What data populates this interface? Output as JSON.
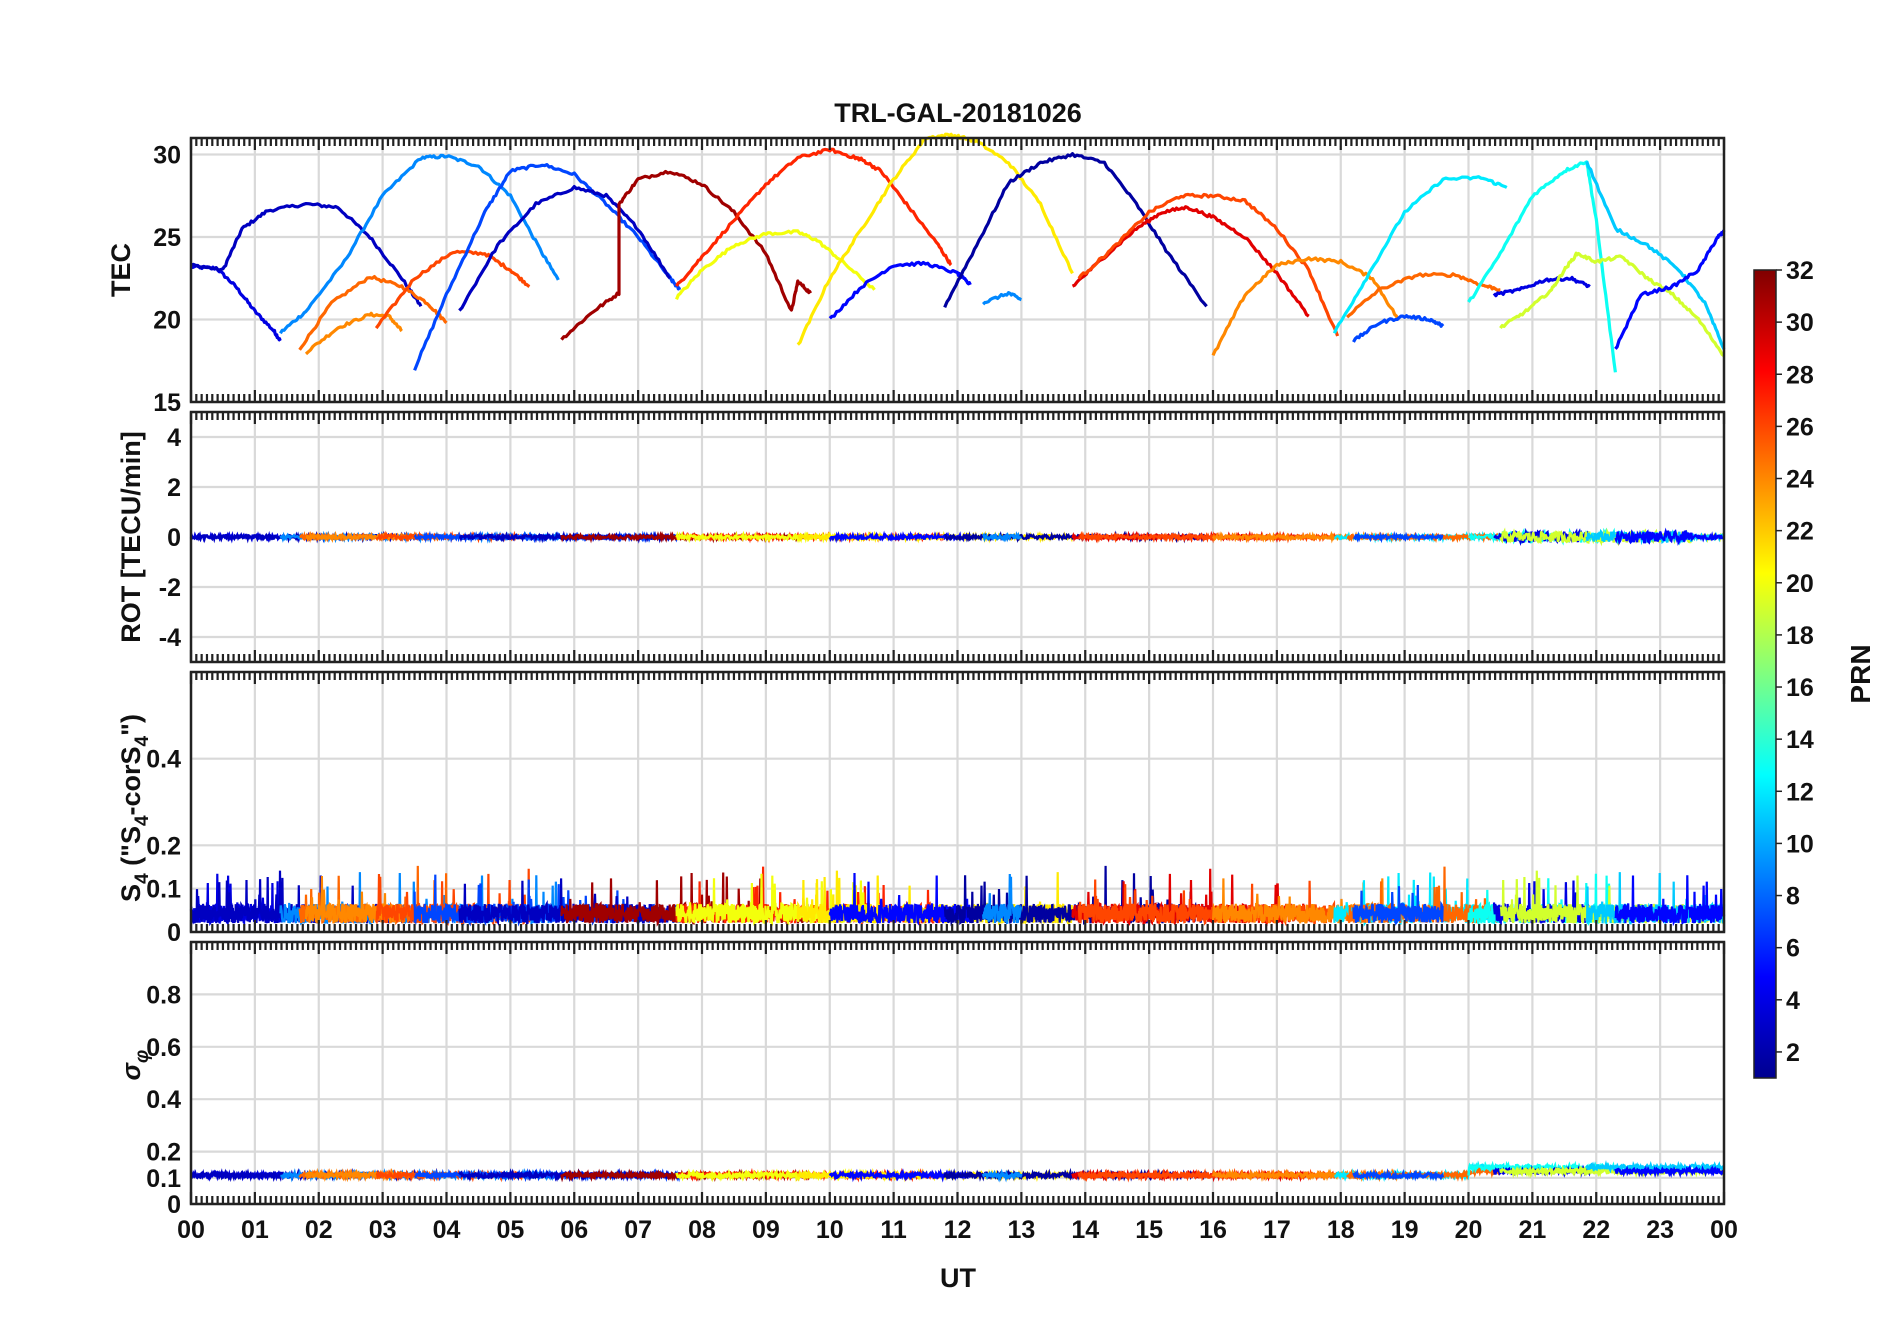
{
  "chart_data": [
    {
      "type": "line",
      "panel": "tec",
      "title": "TRL-GAL-20181026",
      "xlabel": "",
      "ylabel": "TEC",
      "xlim": [
        0,
        24
      ],
      "ylim": [
        15,
        31
      ],
      "yticks": [
        15,
        20,
        25,
        30
      ],
      "grid": true,
      "series": [
        {
          "name": "PRN 4",
          "prn": 4,
          "x": [
            0.0,
            0.4,
            0.7,
            1.0,
            1.3,
            1.4
          ],
          "y": [
            23.2,
            23.1,
            22.0,
            20.5,
            19.3,
            18.7
          ]
        },
        {
          "name": "PRN 3",
          "prn": 3,
          "x": [
            0.0,
            0.5,
            0.8,
            1.2,
            1.8,
            2.3,
            2.8,
            3.3,
            3.6
          ],
          "y": [
            23.3,
            23.0,
            25.5,
            26.6,
            27.0,
            26.8,
            25.0,
            22.5,
            20.8
          ]
        },
        {
          "name": "PRN 9",
          "prn": 9,
          "x": [
            1.4,
            1.8,
            2.4,
            3.0,
            3.6,
            4.0,
            4.5,
            5.0,
            5.5,
            5.75
          ],
          "y": [
            19.2,
            20.5,
            23.5,
            27.5,
            29.8,
            29.9,
            29.3,
            27.5,
            24.0,
            22.4
          ]
        },
        {
          "name": "PRN 25",
          "prn": 25,
          "x": [
            1.7,
            2.2,
            2.8,
            3.3,
            3.7,
            4.0
          ],
          "y": [
            18.2,
            21.0,
            22.6,
            22.0,
            21.0,
            19.8
          ]
        },
        {
          "name": "PRN 24",
          "prn": 24,
          "x": [
            1.8,
            2.3,
            2.8,
            3.1,
            3.3
          ],
          "y": [
            18.0,
            19.5,
            20.3,
            20.2,
            19.3
          ]
        },
        {
          "name": "PRN 26",
          "prn": 26,
          "x": [
            2.9,
            3.5,
            4.1,
            4.6,
            5.0,
            5.3
          ],
          "y": [
            19.5,
            22.5,
            24.1,
            24.0,
            23.0,
            22.0
          ]
        },
        {
          "name": "PRN 7",
          "prn": 7,
          "x": [
            3.5,
            4.0,
            4.6,
            5.0,
            5.5,
            6.0,
            6.5,
            7.0,
            7.5,
            7.65
          ],
          "y": [
            17.0,
            21.5,
            26.5,
            29.0,
            29.4,
            28.8,
            27.0,
            25.0,
            22.5,
            21.8
          ]
        },
        {
          "name": "PRN 3b",
          "prn": 3,
          "x": [
            4.2,
            4.8,
            5.4,
            6.0,
            6.5,
            7.0,
            7.5
          ],
          "y": [
            20.5,
            24.5,
            27.0,
            28.0,
            27.5,
            25.5,
            22.5
          ]
        },
        {
          "name": "PRN 31",
          "prn": 31,
          "x": [
            5.8,
            6.3,
            6.7,
            6.7,
            7.0,
            7.5,
            8.0,
            8.5,
            9.0,
            9.4,
            9.5,
            9.7
          ],
          "y": [
            18.8,
            20.5,
            21.6,
            27.0,
            28.5,
            29.0,
            28.2,
            26.5,
            24.0,
            20.5,
            22.3,
            21.6
          ]
        },
        {
          "name": "PRN 27",
          "prn": 27,
          "x": [
            7.6,
            8.0,
            8.5,
            9.0,
            9.5,
            10.0,
            10.4,
            10.5,
            10.8,
            11.2,
            11.7,
            11.9
          ],
          "y": [
            22.0,
            23.8,
            26.0,
            28.2,
            29.8,
            30.3,
            29.8,
            29.7,
            29.0,
            27.0,
            24.5,
            23.3
          ]
        },
        {
          "name": "PRN 20",
          "prn": 20,
          "x": [
            7.6,
            8.0,
            8.5,
            9.0,
            9.5,
            9.8,
            10.2,
            10.7
          ],
          "y": [
            21.3,
            23.0,
            24.5,
            25.2,
            25.3,
            24.8,
            23.5,
            21.8
          ]
        },
        {
          "name": "PRN 21",
          "prn": 21,
          "x": [
            9.5,
            10.0,
            10.5,
            11.0,
            11.5,
            11.9,
            12.3,
            12.8,
            13.3,
            13.8
          ],
          "y": [
            18.4,
            22.5,
            25.5,
            28.5,
            31.0,
            31.2,
            30.8,
            29.5,
            27.0,
            22.8
          ]
        },
        {
          "name": "PRN 5",
          "prn": 5,
          "x": [
            10.0,
            10.5,
            11.0,
            11.5,
            12.0,
            12.2
          ],
          "y": [
            20.0,
            22.0,
            23.3,
            23.4,
            22.8,
            22.1
          ]
        },
        {
          "name": "PRN 2",
          "prn": 2,
          "x": [
            11.8,
            12.3,
            12.8,
            13.3,
            13.8,
            14.3,
            14.8,
            15.3,
            15.9
          ],
          "y": [
            20.8,
            24.5,
            28.3,
            29.5,
            30.0,
            29.5,
            27.0,
            24.0,
            20.8
          ]
        },
        {
          "name": "PRN 9b",
          "prn": 9,
          "x": [
            12.4,
            12.8,
            13.0
          ],
          "y": [
            21.0,
            21.6,
            21.2
          ]
        },
        {
          "name": "PRN 29",
          "prn": 29,
          "x": [
            13.8,
            14.3,
            14.8,
            15.2,
            15.6,
            16.0,
            16.5,
            17.0,
            17.5
          ],
          "y": [
            22.0,
            23.8,
            25.5,
            26.5,
            26.8,
            26.2,
            25.0,
            22.8,
            20.2
          ]
        },
        {
          "name": "PRN 26b",
          "prn": 26,
          "x": [
            13.9,
            14.4,
            15.0,
            15.5,
            16.0,
            16.5,
            17.0,
            17.5,
            17.95
          ],
          "y": [
            22.5,
            24.2,
            26.5,
            27.5,
            27.5,
            27.2,
            25.5,
            23.0,
            19.0
          ]
        },
        {
          "name": "PRN 24b",
          "prn": 24,
          "x": [
            16.0,
            16.5,
            17.0,
            17.5,
            18.0,
            18.5,
            18.9
          ],
          "y": [
            17.8,
            21.5,
            23.3,
            23.7,
            23.5,
            22.5,
            20.0
          ]
        },
        {
          "name": "PRN 12",
          "prn": 12,
          "x": [
            17.9,
            18.4,
            19.0,
            19.6,
            20.2,
            20.6
          ],
          "y": [
            19.2,
            22.5,
            26.5,
            28.5,
            28.6,
            28.0
          ]
        },
        {
          "name": "PRN 25b",
          "prn": 25,
          "x": [
            18.1,
            18.6,
            19.2,
            19.8,
            20.2,
            20.5
          ],
          "y": [
            20.2,
            21.8,
            22.7,
            22.7,
            22.1,
            21.8
          ]
        },
        {
          "name": "PRN 7b",
          "prn": 7,
          "x": [
            18.2,
            18.6,
            19.0,
            19.4,
            19.6
          ],
          "y": [
            18.7,
            19.8,
            20.2,
            20.0,
            19.6
          ]
        },
        {
          "name": "PRN 13",
          "prn": 13,
          "x": [
            20.0,
            20.5,
            21.0,
            21.5,
            21.85,
            22.0,
            22.3
          ],
          "y": [
            21.0,
            24.0,
            27.5,
            29.0,
            29.6,
            26.0,
            16.8
          ]
        },
        {
          "name": "PRN 4b",
          "prn": 4,
          "x": [
            20.4,
            20.8,
            21.2,
            21.6,
            21.9
          ],
          "y": [
            21.5,
            21.8,
            22.4,
            22.5,
            22.0
          ]
        },
        {
          "name": "PRN 19",
          "prn": 19,
          "x": [
            20.5,
            20.9,
            21.3,
            21.5,
            21.7,
            22.0,
            22.4,
            22.8,
            23.2,
            23.6,
            24.0
          ],
          "y": [
            19.5,
            20.5,
            21.8,
            23.0,
            24.0,
            23.5,
            23.8,
            22.5,
            21.5,
            20.0,
            17.8
          ]
        },
        {
          "name": "PRN 11",
          "prn": 11,
          "x": [
            21.85,
            22.3,
            22.8,
            23.3,
            23.7,
            24.0
          ],
          "y": [
            29.6,
            25.5,
            24.5,
            23.0,
            21.0,
            18.2
          ]
        },
        {
          "name": "PRN 5b",
          "prn": 5,
          "x": [
            22.3,
            22.7,
            23.2,
            23.6,
            23.9,
            24.0
          ],
          "y": [
            18.2,
            21.5,
            22.0,
            23.0,
            25.0,
            25.3
          ]
        }
      ]
    },
    {
      "type": "line",
      "panel": "rot",
      "ylabel": "ROT [TECU/min]",
      "xlim": [
        0,
        24
      ],
      "ylim": [
        -5,
        5
      ],
      "yticks": [
        -4,
        -2,
        0,
        2,
        4
      ],
      "grid": true,
      "series_note": "same PRN passes as TEC panel, values near 0"
    },
    {
      "type": "line",
      "panel": "s4",
      "ylabel": "S4 (\"S4-corS4\")",
      "xlim": [
        0,
        24
      ],
      "ylim": [
        0,
        0.6
      ],
      "yticks": [
        0,
        0.1,
        0.2,
        0.4
      ],
      "grid": true,
      "series_note": "noise floor ~0.04 with peaks up to ~0.17"
    },
    {
      "type": "line",
      "panel": "sigma",
      "ylabel": "σφ",
      "xlabel": "UT",
      "xlim": [
        0,
        24
      ],
      "ylim": [
        0,
        1
      ],
      "yticks": [
        0,
        0.1,
        0.2,
        0.4,
        0.6,
        0.8
      ],
      "grid": true,
      "xticks": [
        "00",
        "01",
        "02",
        "03",
        "04",
        "05",
        "06",
        "07",
        "08",
        "09",
        "10",
        "11",
        "12",
        "13",
        "14",
        "15",
        "16",
        "17",
        "18",
        "19",
        "20",
        "21",
        "22",
        "23",
        "00"
      ],
      "series_note": "values near 0.11, slightly higher ~0.14 after 20 UT"
    }
  ],
  "colorbar": {
    "label": "PRN",
    "range": [
      1,
      32
    ],
    "ticks": [
      "2",
      "4",
      "6",
      "8",
      "10",
      "12",
      "14",
      "16",
      "18",
      "20",
      "22",
      "24",
      "26",
      "28",
      "30",
      "32"
    ]
  },
  "text": {
    "title": "TRL-GAL-20181026",
    "xlabel": "UT",
    "tec_ylabel": "TEC",
    "rot_ylabel": "ROT [TECU/min]",
    "s4_ylabel_main": "S",
    "s4_ylabel_sub": "4",
    "s4_ylabel_rest1": " (\"S",
    "s4_ylabel_rest2": "-corS",
    "s4_ylabel_rest3": "\")",
    "sigma_ylabel": "σ",
    "sigma_ylabel_sub": "φ",
    "colorbar_label": "PRN"
  }
}
